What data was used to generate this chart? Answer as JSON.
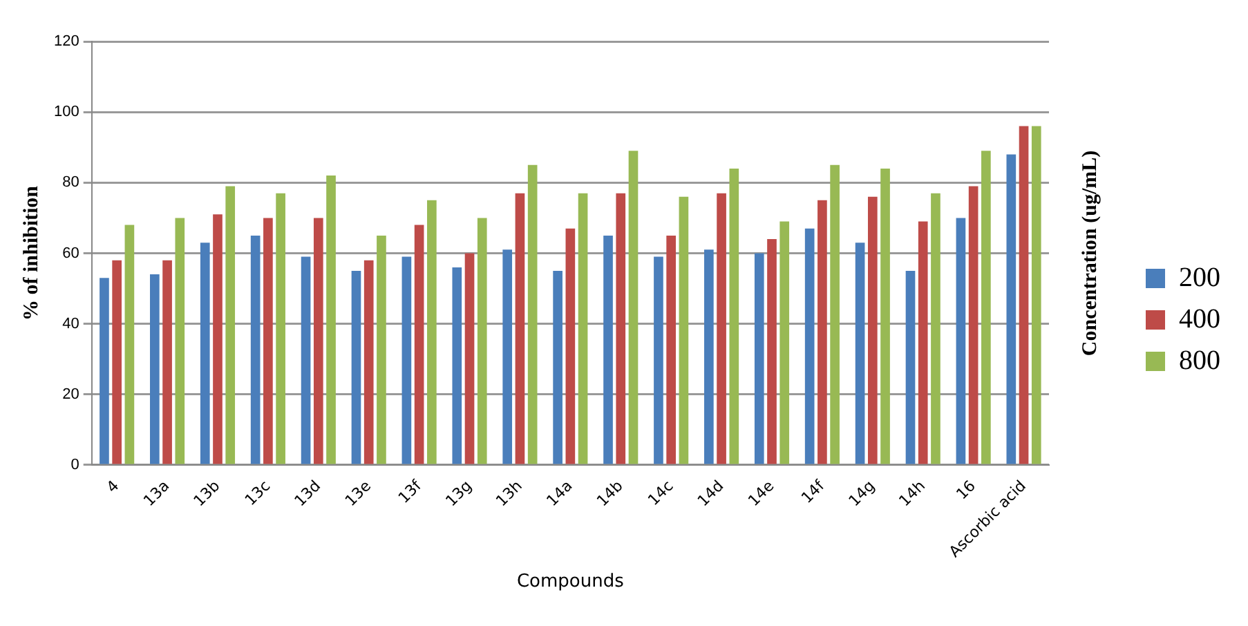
{
  "chart_data": {
    "type": "bar",
    "xlabel": "Compounds",
    "ylabel": "% of inhibition",
    "legend_title": "Concentration (ug/mL)",
    "categories": [
      "4",
      "13a",
      "13b",
      "13c",
      "13d",
      "13e",
      "13f",
      "13g",
      "13h",
      "14a",
      "14b",
      "14c",
      "14d",
      "14e",
      "14f",
      "14g",
      "14h",
      "16",
      "Ascorbic acid"
    ],
    "series": [
      {
        "name": "200",
        "color": "#4a7ebb",
        "values": [
          53,
          54,
          63,
          65,
          59,
          55,
          59,
          56,
          61,
          55,
          65,
          59,
          61,
          60,
          67,
          63,
          55,
          70,
          88
        ]
      },
      {
        "name": "400",
        "color": "#be4b48",
        "values": [
          58,
          58,
          71,
          70,
          70,
          58,
          68,
          60,
          77,
          67,
          77,
          65,
          77,
          64,
          75,
          76,
          69,
          79,
          96
        ]
      },
      {
        "name": "800",
        "color": "#98b954",
        "values": [
          68,
          70,
          79,
          77,
          82,
          65,
          75,
          70,
          85,
          77,
          89,
          76,
          84,
          69,
          85,
          84,
          77,
          89,
          96
        ]
      }
    ],
    "ylim": [
      0,
      120
    ],
    "yticks": [
      0,
      20,
      40,
      60,
      80,
      100,
      120
    ],
    "grid": "y",
    "legend": "right"
  }
}
